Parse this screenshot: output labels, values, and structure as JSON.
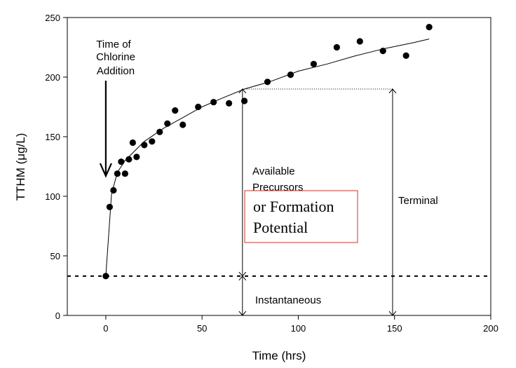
{
  "chart_data": {
    "type": "scatter",
    "xlabel": "Time (hrs)",
    "ylabel": "TTHM (μg/L)",
    "xlim": [
      -20,
      200
    ],
    "ylim": [
      0,
      250
    ],
    "x_ticks": [
      0,
      50,
      100,
      150,
      200
    ],
    "y_ticks": [
      0,
      50,
      100,
      150,
      200,
      250
    ],
    "grid": false,
    "points": [
      {
        "x": 0,
        "y": 33
      },
      {
        "x": 2,
        "y": 91
      },
      {
        "x": 4,
        "y": 105
      },
      {
        "x": 6,
        "y": 119
      },
      {
        "x": 8,
        "y": 129
      },
      {
        "x": 10,
        "y": 119
      },
      {
        "x": 12,
        "y": 131
      },
      {
        "x": 14,
        "y": 145
      },
      {
        "x": 16,
        "y": 133
      },
      {
        "x": 20,
        "y": 143
      },
      {
        "x": 24,
        "y": 146
      },
      {
        "x": 28,
        "y": 154
      },
      {
        "x": 32,
        "y": 161
      },
      {
        "x": 36,
        "y": 172
      },
      {
        "x": 40,
        "y": 160
      },
      {
        "x": 48,
        "y": 175
      },
      {
        "x": 56,
        "y": 179
      },
      {
        "x": 64,
        "y": 178
      },
      {
        "x": 72,
        "y": 180
      },
      {
        "x": 84,
        "y": 196
      },
      {
        "x": 96,
        "y": 202
      },
      {
        "x": 108,
        "y": 211
      },
      {
        "x": 120,
        "y": 225
      },
      {
        "x": 132,
        "y": 230
      },
      {
        "x": 144,
        "y": 222
      },
      {
        "x": 156,
        "y": 218
      },
      {
        "x": 168,
        "y": 242
      }
    ],
    "fit_curve": [
      {
        "x": 0,
        "y": 33
      },
      {
        "x": 3,
        "y": 102
      },
      {
        "x": 6,
        "y": 120
      },
      {
        "x": 10,
        "y": 130
      },
      {
        "x": 15,
        "y": 138
      },
      {
        "x": 20,
        "y": 146
      },
      {
        "x": 30,
        "y": 157
      },
      {
        "x": 40,
        "y": 166
      },
      {
        "x": 50,
        "y": 175
      },
      {
        "x": 60,
        "y": 182
      },
      {
        "x": 72,
        "y": 190
      },
      {
        "x": 85,
        "y": 196
      },
      {
        "x": 100,
        "y": 205
      },
      {
        "x": 115,
        "y": 211
      },
      {
        "x": 130,
        "y": 218
      },
      {
        "x": 145,
        "y": 224
      },
      {
        "x": 160,
        "y": 229
      },
      {
        "x": 168,
        "y": 232
      }
    ],
    "baseline_y": 33,
    "terminal_y": 190,
    "instant_x": 71,
    "terminal_x": 149,
    "chlorine_arrow": {
      "x": 0,
      "y_from": 197,
      "y_to": 117
    },
    "annotations": {
      "chlorine": [
        "Time of",
        "Chlorine",
        "Addition"
      ],
      "available": [
        "Available",
        "Precursors"
      ],
      "formation": [
        "or Formation",
        "Potential"
      ],
      "terminal": "Terminal",
      "instantaneous": "Instantaneous"
    },
    "colors": {
      "box_border": "#c0392b",
      "ink": "#000000"
    }
  }
}
